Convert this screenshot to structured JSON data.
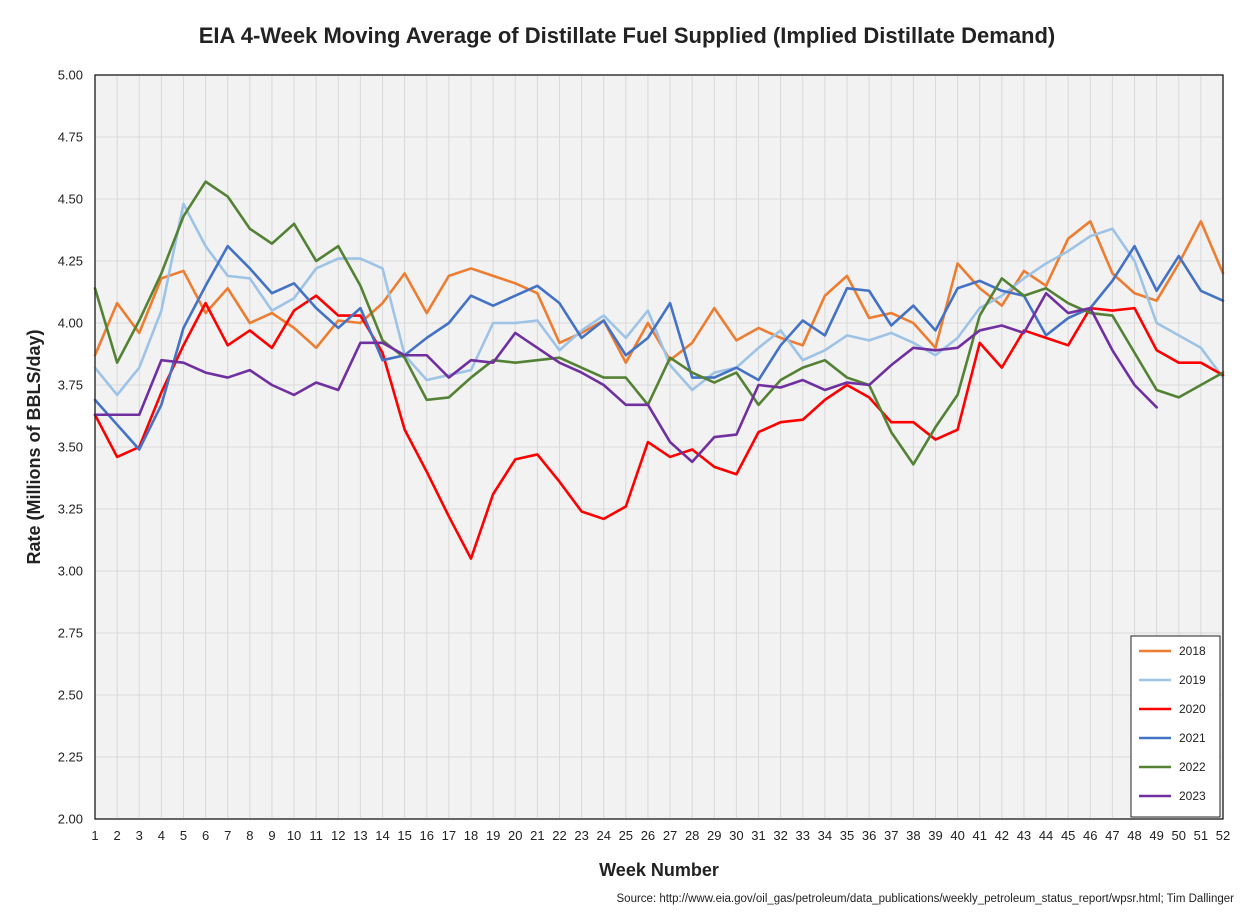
{
  "chart_data": {
    "type": "line",
    "title": "EIA 4-Week Moving Average of Distillate Fuel Supplied (Implied Distillate Demand)",
    "xlabel": "Week Number",
    "ylabel": "Rate (Millions of BBLS/day)",
    "source": "Source: http://www.eia.gov/oil_gas/petroleum/data_publications/weekly_petroleum_status_report/wpsr.html; Tim Dallinger",
    "xlim": [
      1,
      52
    ],
    "ylim": [
      2.0,
      5.0
    ],
    "x_ticks": [
      1,
      2,
      3,
      4,
      5,
      6,
      7,
      8,
      9,
      10,
      11,
      12,
      13,
      14,
      15,
      16,
      17,
      18,
      19,
      20,
      21,
      22,
      23,
      24,
      25,
      26,
      27,
      28,
      29,
      30,
      31,
      32,
      33,
      34,
      35,
      36,
      37,
      38,
      39,
      40,
      41,
      42,
      43,
      44,
      45,
      46,
      47,
      48,
      49,
      50,
      51,
      52
    ],
    "y_ticks": [
      "2.00",
      "2.25",
      "2.50",
      "2.75",
      "3.00",
      "3.25",
      "3.50",
      "3.75",
      "4.00",
      "4.25",
      "4.50",
      "4.75",
      "5.00"
    ],
    "grid": true,
    "legend_position": "bottom-right",
    "plot_background": "#f2f2f2",
    "grid_color": "#d9d9d9",
    "series": [
      {
        "name": "2018",
        "color": "#ed7d31",
        "values": [
          3.87,
          4.08,
          3.96,
          4.18,
          4.21,
          4.04,
          4.14,
          4.0,
          4.04,
          3.98,
          3.9,
          4.01,
          4.0,
          4.08,
          4.2,
          4.04,
          4.19,
          4.22,
          4.19,
          4.16,
          4.12,
          3.92,
          3.96,
          4.01,
          3.84,
          4.0,
          3.85,
          3.92,
          4.06,
          3.93,
          3.98,
          3.94,
          3.91,
          4.11,
          4.19,
          4.02,
          4.04,
          4.0,
          3.9,
          4.24,
          4.14,
          4.07,
          4.21,
          4.15,
          4.34,
          4.41,
          4.2,
          4.12,
          4.09,
          4.24,
          4.41,
          4.2
        ]
      },
      {
        "name": "2019",
        "color": "#9dc3e6",
        "values": [
          3.82,
          3.71,
          3.82,
          4.05,
          4.48,
          4.31,
          4.19,
          4.18,
          4.05,
          4.1,
          4.22,
          4.26,
          4.26,
          4.22,
          3.87,
          3.77,
          3.79,
          3.81,
          4.0,
          4.0,
          4.01,
          3.89,
          3.97,
          4.03,
          3.94,
          4.05,
          3.83,
          3.73,
          3.8,
          3.82,
          3.9,
          3.97,
          3.85,
          3.89,
          3.95,
          3.93,
          3.96,
          3.92,
          3.87,
          3.94,
          4.06,
          4.11,
          4.18,
          4.24,
          4.29,
          4.35,
          4.38,
          4.25,
          4.0,
          3.95,
          3.9,
          3.78
        ]
      },
      {
        "name": "2020",
        "color": "#ff0000",
        "values": [
          3.63,
          3.46,
          3.5,
          3.72,
          3.91,
          4.08,
          3.91,
          3.97,
          3.9,
          4.05,
          4.11,
          4.03,
          4.03,
          3.88,
          3.57,
          3.4,
          3.22,
          3.05,
          3.31,
          3.45,
          3.47,
          3.36,
          3.24,
          3.21,
          3.26,
          3.52,
          3.46,
          3.49,
          3.42,
          3.39,
          3.56,
          3.6,
          3.61,
          3.69,
          3.75,
          3.7,
          3.6,
          3.6,
          3.53,
          3.57,
          3.92,
          3.82,
          3.97,
          3.94,
          3.91,
          4.06,
          4.05,
          4.06,
          3.89,
          3.84,
          3.84,
          3.79
        ]
      },
      {
        "name": "2021",
        "color": "#4472c4",
        "values": [
          3.69,
          3.59,
          3.49,
          3.67,
          3.98,
          4.15,
          4.31,
          4.22,
          4.12,
          4.16,
          4.06,
          3.98,
          4.06,
          3.85,
          3.87,
          3.94,
          4.0,
          4.11,
          4.07,
          4.11,
          4.15,
          4.08,
          3.94,
          4.01,
          3.87,
          3.94,
          4.08,
          3.78,
          3.78,
          3.82,
          3.77,
          3.91,
          4.01,
          3.95,
          4.14,
          4.13,
          3.99,
          4.07,
          3.97,
          4.14,
          4.17,
          4.13,
          4.11,
          3.95,
          4.02,
          4.06,
          4.17,
          4.31,
          4.13,
          4.27,
          4.13,
          4.09
        ]
      },
      {
        "name": "2022",
        "color": "#548235",
        "values": [
          4.14,
          3.84,
          4.01,
          4.2,
          4.43,
          4.57,
          4.51,
          4.38,
          4.32,
          4.4,
          4.25,
          4.31,
          4.15,
          3.93,
          3.86,
          3.69,
          3.7,
          3.78,
          3.85,
          3.84,
          3.85,
          3.86,
          3.82,
          3.78,
          3.78,
          3.67,
          3.86,
          3.8,
          3.76,
          3.8,
          3.67,
          3.77,
          3.82,
          3.85,
          3.78,
          3.75,
          3.56,
          3.43,
          3.58,
          3.71,
          4.03,
          4.18,
          4.11,
          4.14,
          4.08,
          4.04,
          4.03,
          3.88,
          3.73,
          3.7,
          3.75,
          3.8
        ]
      },
      {
        "name": "2023",
        "color": "#7030a0",
        "values": [
          3.63,
          3.63,
          3.63,
          3.85,
          3.84,
          3.8,
          3.78,
          3.81,
          3.75,
          3.71,
          3.76,
          3.73,
          3.92,
          3.92,
          3.87,
          3.87,
          3.78,
          3.85,
          3.84,
          3.96,
          3.9,
          3.84,
          3.8,
          3.75,
          3.67,
          3.67,
          3.52,
          3.44,
          3.54,
          3.55,
          3.75,
          3.74,
          3.77,
          3.73,
          3.76,
          3.75,
          3.83,
          3.9,
          3.89,
          3.9,
          3.97,
          3.99,
          3.96,
          4.12,
          4.04,
          4.06,
          3.89,
          3.75,
          3.66,
          null,
          null,
          null
        ]
      }
    ]
  }
}
